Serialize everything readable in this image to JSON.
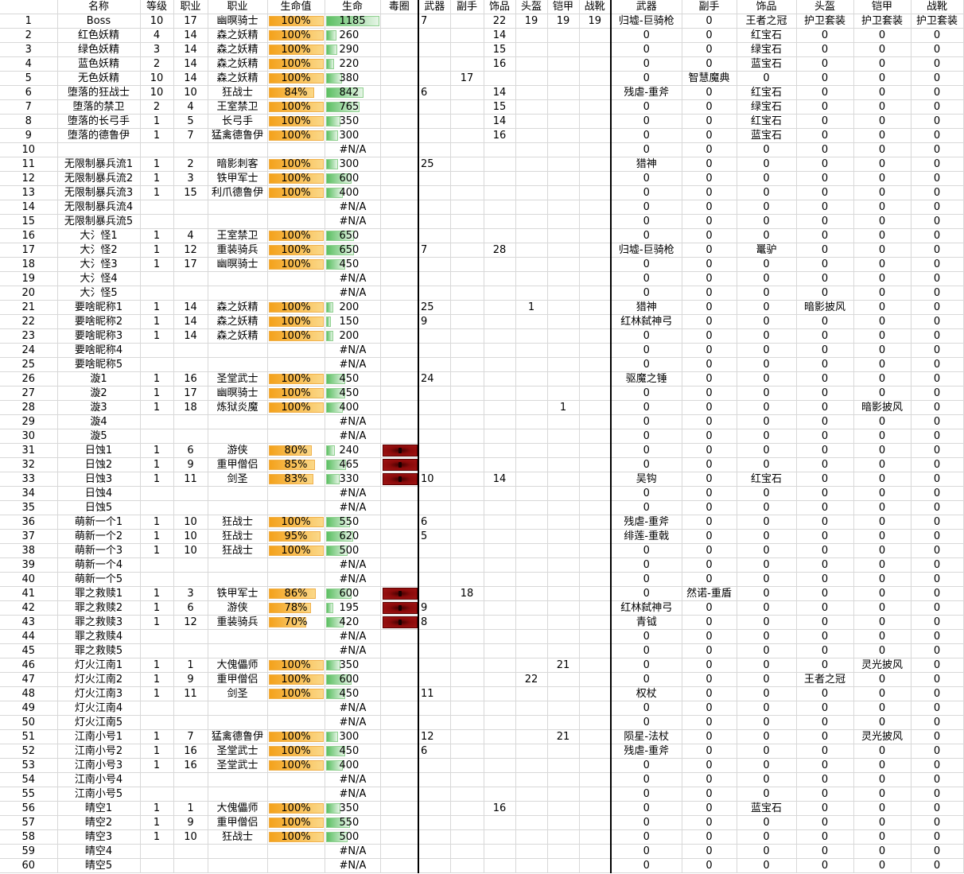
{
  "headers": [
    "",
    "名称",
    "等级",
    "职业",
    "职业",
    "生命值",
    "生命",
    "毒圈",
    "武器",
    "副手",
    "饰品",
    "头盔",
    "铠甲",
    "战靴",
    "武器",
    "副手",
    "饰品",
    "头盔",
    "铠甲",
    "战靴"
  ],
  "rows": [
    [
      1,
      "Boss",
      10,
      17,
      "幽暝骑士",
      100,
      1185,
      0,
      7,
      "",
      22,
      19,
      19,
      19,
      "归墟-巨骑枪",
      "0",
      "王者之冠",
      "护卫套装",
      "护卫套装",
      "护卫套装"
    ],
    [
      2,
      "红色妖精",
      4,
      14,
      "森之妖精",
      100,
      260,
      0,
      "",
      "",
      14,
      "",
      "",
      "",
      "0",
      "0",
      "红宝石",
      "0",
      "0",
      "0"
    ],
    [
      3,
      "绿色妖精",
      3,
      14,
      "森之妖精",
      100,
      290,
      0,
      "",
      "",
      15,
      "",
      "",
      "",
      "0",
      "0",
      "绿宝石",
      "0",
      "0",
      "0"
    ],
    [
      4,
      "蓝色妖精",
      2,
      14,
      "森之妖精",
      100,
      220,
      0,
      "",
      "",
      16,
      "",
      "",
      "",
      "0",
      "0",
      "蓝宝石",
      "0",
      "0",
      "0"
    ],
    [
      5,
      "无色妖精",
      10,
      14,
      "森之妖精",
      100,
      380,
      0,
      "",
      17,
      "",
      "",
      "",
      "",
      "0",
      "智慧魔典",
      "0",
      "0",
      "0",
      "0"
    ],
    [
      6,
      "堕落的狂战士",
      10,
      10,
      "狂战士",
      84,
      842,
      0,
      6,
      "",
      14,
      "",
      "",
      "",
      "残虐-重斧",
      "0",
      "红宝石",
      "0",
      "0",
      "0"
    ],
    [
      7,
      "堕落的禁卫",
      2,
      4,
      "王室禁卫",
      100,
      765,
      0,
      "",
      "",
      15,
      "",
      "",
      "",
      "0",
      "0",
      "绿宝石",
      "0",
      "0",
      "0"
    ],
    [
      8,
      "堕落的长弓手",
      1,
      5,
      "长弓手",
      100,
      350,
      0,
      "",
      "",
      14,
      "",
      "",
      "",
      "0",
      "0",
      "红宝石",
      "0",
      "0",
      "0"
    ],
    [
      9,
      "堕落的德鲁伊",
      1,
      7,
      "猛禽德鲁伊",
      100,
      300,
      0,
      "",
      "",
      16,
      "",
      "",
      "",
      "0",
      "0",
      "蓝宝石",
      "0",
      "0",
      "0"
    ],
    [
      10,
      "",
      "",
      "",
      "",
      "",
      "#N/A",
      0,
      "",
      "",
      "",
      "",
      "",
      "",
      "0",
      "0",
      "0",
      "0",
      "0",
      "0"
    ],
    [
      11,
      "无限制暴兵流1",
      1,
      2,
      "暗影刺客",
      100,
      300,
      0,
      25,
      "",
      "",
      "",
      "",
      "",
      "猎神",
      "0",
      "0",
      "0",
      "0",
      "0"
    ],
    [
      12,
      "无限制暴兵流2",
      1,
      3,
      "铁甲军士",
      100,
      600,
      0,
      "",
      "",
      "",
      "",
      "",
      "",
      "0",
      "0",
      "0",
      "0",
      "0",
      "0"
    ],
    [
      13,
      "无限制暴兵流3",
      1,
      15,
      "利爪德鲁伊",
      100,
      400,
      0,
      "",
      "",
      "",
      "",
      "",
      "",
      "0",
      "0",
      "0",
      "0",
      "0",
      "0"
    ],
    [
      14,
      "无限制暴兵流4",
      "",
      "",
      "",
      "",
      "#N/A",
      0,
      "",
      "",
      "",
      "",
      "",
      "",
      "0",
      "0",
      "0",
      "0",
      "0",
      "0"
    ],
    [
      15,
      "无限制暴兵流5",
      "",
      "",
      "",
      "",
      "#N/A",
      0,
      "",
      "",
      "",
      "",
      "",
      "",
      "0",
      "0",
      "0",
      "0",
      "0",
      "0"
    ],
    [
      16,
      "大氵怪1",
      1,
      4,
      "王室禁卫",
      100,
      650,
      0,
      "",
      "",
      "",
      "",
      "",
      "",
      "0",
      "0",
      "0",
      "0",
      "0",
      "0"
    ],
    [
      17,
      "大氵怪2",
      1,
      12,
      "重装骑兵",
      100,
      650,
      0,
      7,
      "",
      28,
      "",
      "",
      "",
      "归墟-巨骑枪",
      "0",
      "鼍驴",
      "0",
      "0",
      "0"
    ],
    [
      18,
      "大氵怪3",
      1,
      17,
      "幽暝骑士",
      100,
      450,
      0,
      "",
      "",
      "",
      "",
      "",
      "",
      "0",
      "0",
      "0",
      "0",
      "0",
      "0"
    ],
    [
      19,
      "大氵怪4",
      "",
      "",
      "",
      "",
      "#N/A",
      0,
      "",
      "",
      "",
      "",
      "",
      "",
      "0",
      "0",
      "0",
      "0",
      "0",
      "0"
    ],
    [
      20,
      "大氵怪5",
      "",
      "",
      "",
      "",
      "#N/A",
      0,
      "",
      "",
      "",
      "",
      "",
      "",
      "0",
      "0",
      "0",
      "0",
      "0",
      "0"
    ],
    [
      21,
      "要啥昵称1",
      1,
      14,
      "森之妖精",
      100,
      200,
      0,
      25,
      "",
      "",
      1,
      "",
      "",
      "猎神",
      "0",
      "0",
      "暗影披风",
      "0",
      "0"
    ],
    [
      22,
      "要啥昵称2",
      1,
      14,
      "森之妖精",
      100,
      150,
      0,
      9,
      "",
      "",
      "",
      "",
      "",
      "红林弑神弓",
      "0",
      "0",
      "0",
      "0",
      "0"
    ],
    [
      23,
      "要啥昵称3",
      1,
      14,
      "森之妖精",
      100,
      200,
      0,
      "",
      "",
      "",
      "",
      "",
      "",
      "0",
      "0",
      "0",
      "0",
      "0",
      "0"
    ],
    [
      24,
      "要啥昵称4",
      "",
      "",
      "",
      "",
      "#N/A",
      0,
      "",
      "",
      "",
      "",
      "",
      "",
      "0",
      "0",
      "0",
      "0",
      "0",
      "0"
    ],
    [
      25,
      "要啥昵称5",
      "",
      "",
      "",
      "",
      "#N/A",
      0,
      "",
      "",
      "",
      "",
      "",
      "",
      "0",
      "0",
      "0",
      "0",
      "0",
      "0"
    ],
    [
      26,
      "漩1",
      1,
      16,
      "圣堂武士",
      100,
      450,
      0,
      24,
      "",
      "",
      "",
      "",
      "",
      "驱魔之锤",
      "0",
      "0",
      "0",
      "0",
      "0"
    ],
    [
      27,
      "漩2",
      1,
      17,
      "幽暝骑士",
      100,
      450,
      0,
      "",
      "",
      "",
      "",
      "",
      "",
      "0",
      "0",
      "0",
      "0",
      "0",
      "0"
    ],
    [
      28,
      "漩3",
      1,
      18,
      "炼狱炎魔",
      100,
      400,
      0,
      "",
      "",
      "",
      "",
      1,
      "",
      "0",
      "0",
      "0",
      "0",
      "暗影披风",
      "0"
    ],
    [
      29,
      "漩4",
      "",
      "",
      "",
      "",
      "#N/A",
      0,
      "",
      "",
      "",
      "",
      "",
      "",
      "0",
      "0",
      "0",
      "0",
      "0",
      "0"
    ],
    [
      30,
      "漩5",
      "",
      "",
      "",
      "",
      "#N/A",
      0,
      "",
      "",
      "",
      "",
      "",
      "",
      "0",
      "0",
      "0",
      "0",
      "0",
      "0"
    ],
    [
      31,
      "日蚀1",
      1,
      6,
      "游侠",
      80,
      240,
      1,
      "",
      "",
      "",
      "",
      "",
      "",
      "0",
      "0",
      "0",
      "0",
      "0",
      "0"
    ],
    [
      32,
      "日蚀2",
      1,
      9,
      "重甲僧侣",
      85,
      465,
      1,
      "",
      "",
      "",
      "",
      "",
      "",
      "0",
      "0",
      "0",
      "0",
      "0",
      "0"
    ],
    [
      33,
      "日蚀3",
      1,
      11,
      "剑圣",
      83,
      330,
      1,
      10,
      "",
      14,
      "",
      "",
      "",
      "吴钩",
      "0",
      "红宝石",
      "0",
      "0",
      "0"
    ],
    [
      34,
      "日蚀4",
      "",
      "",
      "",
      "",
      "#N/A",
      0,
      "",
      "",
      "",
      "",
      "",
      "",
      "0",
      "0",
      "0",
      "0",
      "0",
      "0"
    ],
    [
      35,
      "日蚀5",
      "",
      "",
      "",
      "",
      "#N/A",
      0,
      "",
      "",
      "",
      "",
      "",
      "",
      "0",
      "0",
      "0",
      "0",
      "0",
      "0"
    ],
    [
      36,
      "萌新一个1",
      1,
      10,
      "狂战士",
      100,
      550,
      0,
      6,
      "",
      "",
      "",
      "",
      "",
      "残虐-重斧",
      "0",
      "0",
      "0",
      "0",
      "0"
    ],
    [
      37,
      "萌新一个2",
      1,
      10,
      "狂战士",
      95,
      620,
      0,
      5,
      "",
      "",
      "",
      "",
      "",
      "绯莲-重戟",
      "0",
      "0",
      "0",
      "0",
      "0"
    ],
    [
      38,
      "萌新一个3",
      1,
      10,
      "狂战士",
      100,
      500,
      0,
      "",
      "",
      "",
      "",
      "",
      "",
      "0",
      "0",
      "0",
      "0",
      "0",
      "0"
    ],
    [
      39,
      "萌新一个4",
      "",
      "",
      "",
      "",
      "#N/A",
      0,
      "",
      "",
      "",
      "",
      "",
      "",
      "0",
      "0",
      "0",
      "0",
      "0",
      "0"
    ],
    [
      40,
      "萌新一个5",
      "",
      "",
      "",
      "",
      "#N/A",
      0,
      "",
      "",
      "",
      "",
      "",
      "",
      "0",
      "0",
      "0",
      "0",
      "0",
      "0"
    ],
    [
      41,
      "罪之救赎1",
      1,
      3,
      "铁甲军士",
      86,
      600,
      1,
      "",
      18,
      "",
      "",
      "",
      "",
      "0",
      "然诺-重盾",
      "0",
      "0",
      "0",
      "0"
    ],
    [
      42,
      "罪之救赎2",
      1,
      6,
      "游侠",
      78,
      195,
      1,
      9,
      "",
      "",
      "",
      "",
      "",
      "红林弑神弓",
      "0",
      "0",
      "0",
      "0",
      "0"
    ],
    [
      43,
      "罪之救赎3",
      1,
      12,
      "重装骑兵",
      70,
      420,
      1,
      8,
      "",
      "",
      "",
      "",
      "",
      "青钺",
      "0",
      "0",
      "0",
      "0",
      "0"
    ],
    [
      44,
      "罪之救赎4",
      "",
      "",
      "",
      "",
      "#N/A",
      0,
      "",
      "",
      "",
      "",
      "",
      "",
      "0",
      "0",
      "0",
      "0",
      "0",
      "0"
    ],
    [
      45,
      "罪之救赎5",
      "",
      "",
      "",
      "",
      "#N/A",
      0,
      "",
      "",
      "",
      "",
      "",
      "",
      "0",
      "0",
      "0",
      "0",
      "0",
      "0"
    ],
    [
      46,
      "灯火江南1",
      1,
      1,
      "大傀儡师",
      100,
      350,
      0,
      "",
      "",
      "",
      "",
      21,
      "",
      "0",
      "0",
      "0",
      "0",
      "灵光披风",
      "0"
    ],
    [
      47,
      "灯火江南2",
      1,
      9,
      "重甲僧侣",
      100,
      600,
      0,
      "",
      "",
      "",
      22,
      "",
      "",
      "0",
      "0",
      "0",
      "王者之冠",
      "0",
      "0"
    ],
    [
      48,
      "灯火江南3",
      1,
      11,
      "剑圣",
      100,
      450,
      0,
      11,
      "",
      "",
      "",
      "",
      "",
      "权杖",
      "0",
      "0",
      "0",
      "0",
      "0"
    ],
    [
      49,
      "灯火江南4",
      "",
      "",
      "",
      "",
      "#N/A",
      0,
      "",
      "",
      "",
      "",
      "",
      "",
      "0",
      "0",
      "0",
      "0",
      "0",
      "0"
    ],
    [
      50,
      "灯火江南5",
      "",
      "",
      "",
      "",
      "#N/A",
      0,
      "",
      "",
      "",
      "",
      "",
      "",
      "0",
      "0",
      "0",
      "0",
      "0",
      "0"
    ],
    [
      51,
      "江南小号1",
      1,
      7,
      "猛禽德鲁伊",
      100,
      300,
      0,
      12,
      "",
      "",
      "",
      21,
      "",
      "陨星-法杖",
      "0",
      "0",
      "0",
      "灵光披风",
      "0"
    ],
    [
      52,
      "江南小号2",
      1,
      16,
      "圣堂武士",
      100,
      450,
      0,
      6,
      "",
      "",
      "",
      "",
      "",
      "残虐-重斧",
      "0",
      "0",
      "0",
      "0",
      "0"
    ],
    [
      53,
      "江南小号3",
      1,
      16,
      "圣堂武士",
      100,
      400,
      0,
      "",
      "",
      "",
      "",
      "",
      "",
      "0",
      "0",
      "0",
      "0",
      "0",
      "0"
    ],
    [
      54,
      "江南小号4",
      "",
      "",
      "",
      "",
      "#N/A",
      0,
      "",
      "",
      "",
      "",
      "",
      "",
      "0",
      "0",
      "0",
      "0",
      "0",
      "0"
    ],
    [
      55,
      "江南小号5",
      "",
      "",
      "",
      "",
      "#N/A",
      0,
      "",
      "",
      "",
      "",
      "",
      "",
      "0",
      "0",
      "0",
      "0",
      "0",
      "0"
    ],
    [
      56,
      "晴空1",
      1,
      1,
      "大傀儡师",
      100,
      350,
      0,
      "",
      "",
      16,
      "",
      "",
      "",
      "0",
      "0",
      "蓝宝石",
      "0",
      "0",
      "0"
    ],
    [
      57,
      "晴空2",
      1,
      9,
      "重甲僧侣",
      100,
      550,
      0,
      "",
      "",
      "",
      "",
      "",
      "",
      "0",
      "0",
      "0",
      "0",
      "0",
      "0"
    ],
    [
      58,
      "晴空3",
      1,
      10,
      "狂战士",
      100,
      500,
      0,
      "",
      "",
      "",
      "",
      "",
      "",
      "0",
      "0",
      "0",
      "0",
      "0",
      "0"
    ],
    [
      59,
      "晴空4",
      "",
      "",
      "",
      "",
      "#N/A",
      0,
      "",
      "",
      "",
      "",
      "",
      "",
      "0",
      "0",
      "0",
      "0",
      "0",
      "0"
    ],
    [
      60,
      "晴空5",
      "",
      "",
      "",
      "",
      "#N/A",
      0,
      "",
      "",
      "",
      "",
      "",
      "",
      "0",
      "0",
      "0",
      "0",
      "0",
      "0"
    ]
  ],
  "hp_scale_max": 1185,
  "colors": {
    "pct_bar": "#f4a21c",
    "hp_bar": "#5cbf63",
    "poison": "#8b0a0a"
  }
}
